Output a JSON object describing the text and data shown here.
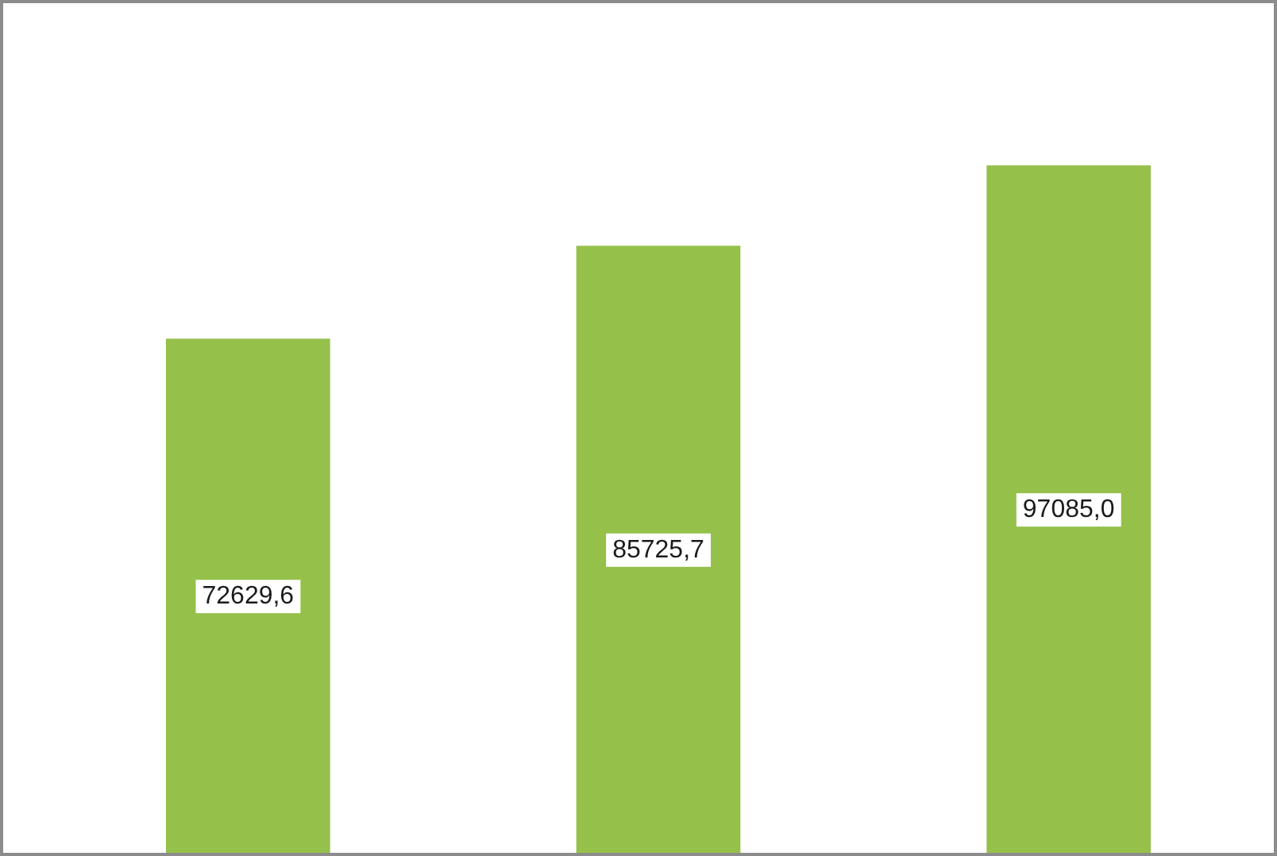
{
  "chart_data": {
    "type": "bar",
    "categories": [
      null,
      null,
      null
    ],
    "values": [
      72629.6,
      85725.7,
      97085.0
    ],
    "value_labels": [
      "72629,6",
      "85725,7",
      "97085,0"
    ],
    "color": "#95c04a",
    "ylim": [
      0,
      120000
    ],
    "tick_labels": false
  }
}
